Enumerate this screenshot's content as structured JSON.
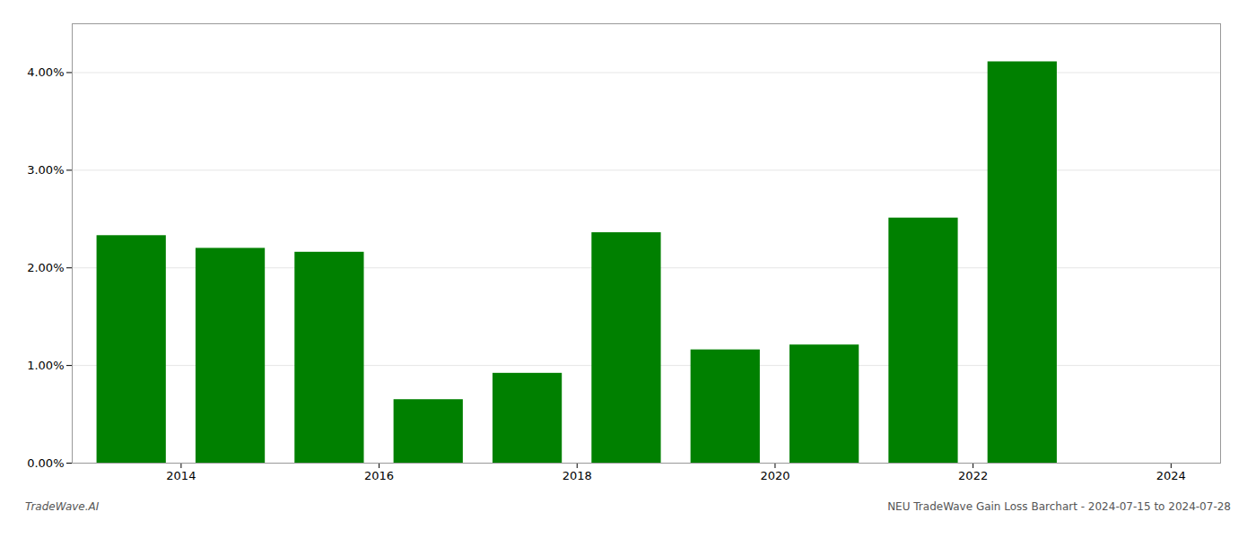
{
  "chart_data": {
    "type": "bar",
    "x": [
      2014,
      2015,
      2016,
      2017,
      2018,
      2019,
      2020,
      2021,
      2022,
      2023
    ],
    "values": [
      0.0233,
      0.022,
      0.0216,
      0.0065,
      0.0092,
      0.0236,
      0.0116,
      0.0121,
      0.0251,
      0.0411
    ],
    "color": "#008000",
    "xlim": [
      2013.4,
      2025.0
    ],
    "xticks": [
      {
        "value": 2014.5,
        "label": "2014"
      },
      {
        "value": 2016.5,
        "label": "2016"
      },
      {
        "value": 2018.5,
        "label": "2018"
      },
      {
        "value": 2020.5,
        "label": "2020"
      },
      {
        "value": 2022.5,
        "label": "2022"
      },
      {
        "value": 2024.5,
        "label": "2024"
      }
    ],
    "ylim": [
      0,
      0.045
    ],
    "yticks": [
      {
        "value": 0.0,
        "label": "0.00%"
      },
      {
        "value": 0.01,
        "label": "1.00%"
      },
      {
        "value": 0.02,
        "label": "2.00%"
      },
      {
        "value": 0.03,
        "label": "3.00%"
      },
      {
        "value": 0.04,
        "label": "4.00%"
      }
    ],
    "grid": true,
    "annotations": [
      "TradeWave.AI",
      "NEU TradeWave Gain Loss Barchart - 2024-07-15 to 2024-07-28"
    ]
  }
}
